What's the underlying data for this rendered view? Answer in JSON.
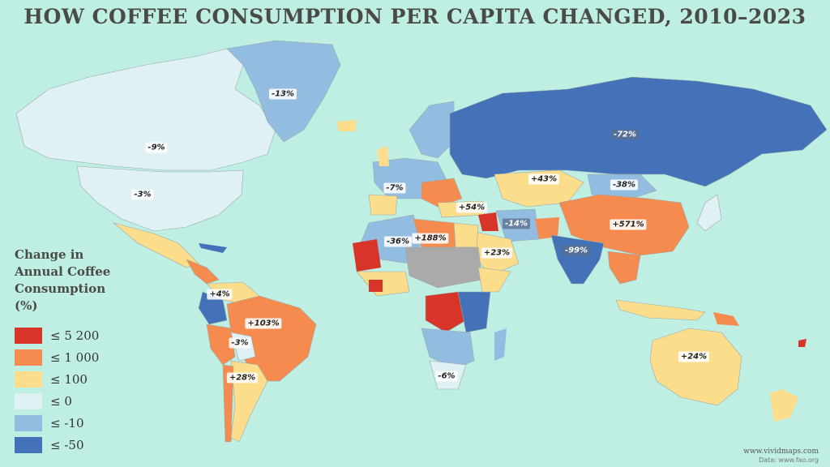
{
  "title": "HOW COFFEE CONSUMPTION PER CAPITA CHANGED, 2010–2023",
  "legend": {
    "title": "Change in Annual Coffee Consumption (%)",
    "items": [
      {
        "label": "≤ 5 200",
        "color": "#d7342a"
      },
      {
        "label": "≤ 1 000",
        "color": "#f58b4e"
      },
      {
        "label": "≤ 100",
        "color": "#fbdd8c"
      },
      {
        "label": "≤ 0",
        "color": "#dff1f5"
      },
      {
        "label": "≤ -10",
        "color": "#93bde0"
      },
      {
        "label": "≤ -50",
        "color": "#4472b8"
      }
    ]
  },
  "labels": {
    "greenland": "-13%",
    "canada": "-9%",
    "usa": "-3%",
    "russia": "-72%",
    "kazakhstan": "+43%",
    "mongolia": "-38%",
    "europe": "-7%",
    "turkey": "+54%",
    "iran": "-14%",
    "china": "+571%",
    "algeria": "-36%",
    "libya": "+188%",
    "saudi": "+23%",
    "india": "-99%",
    "venezuela": "+4%",
    "brazil": "+103%",
    "bolivia": "-3%",
    "argentina": "+28%",
    "south_africa": "-6%",
    "australia": "+24%"
  },
  "credits": {
    "site": "www.vividmaps.com",
    "source": "Data: www.fao.org"
  }
}
